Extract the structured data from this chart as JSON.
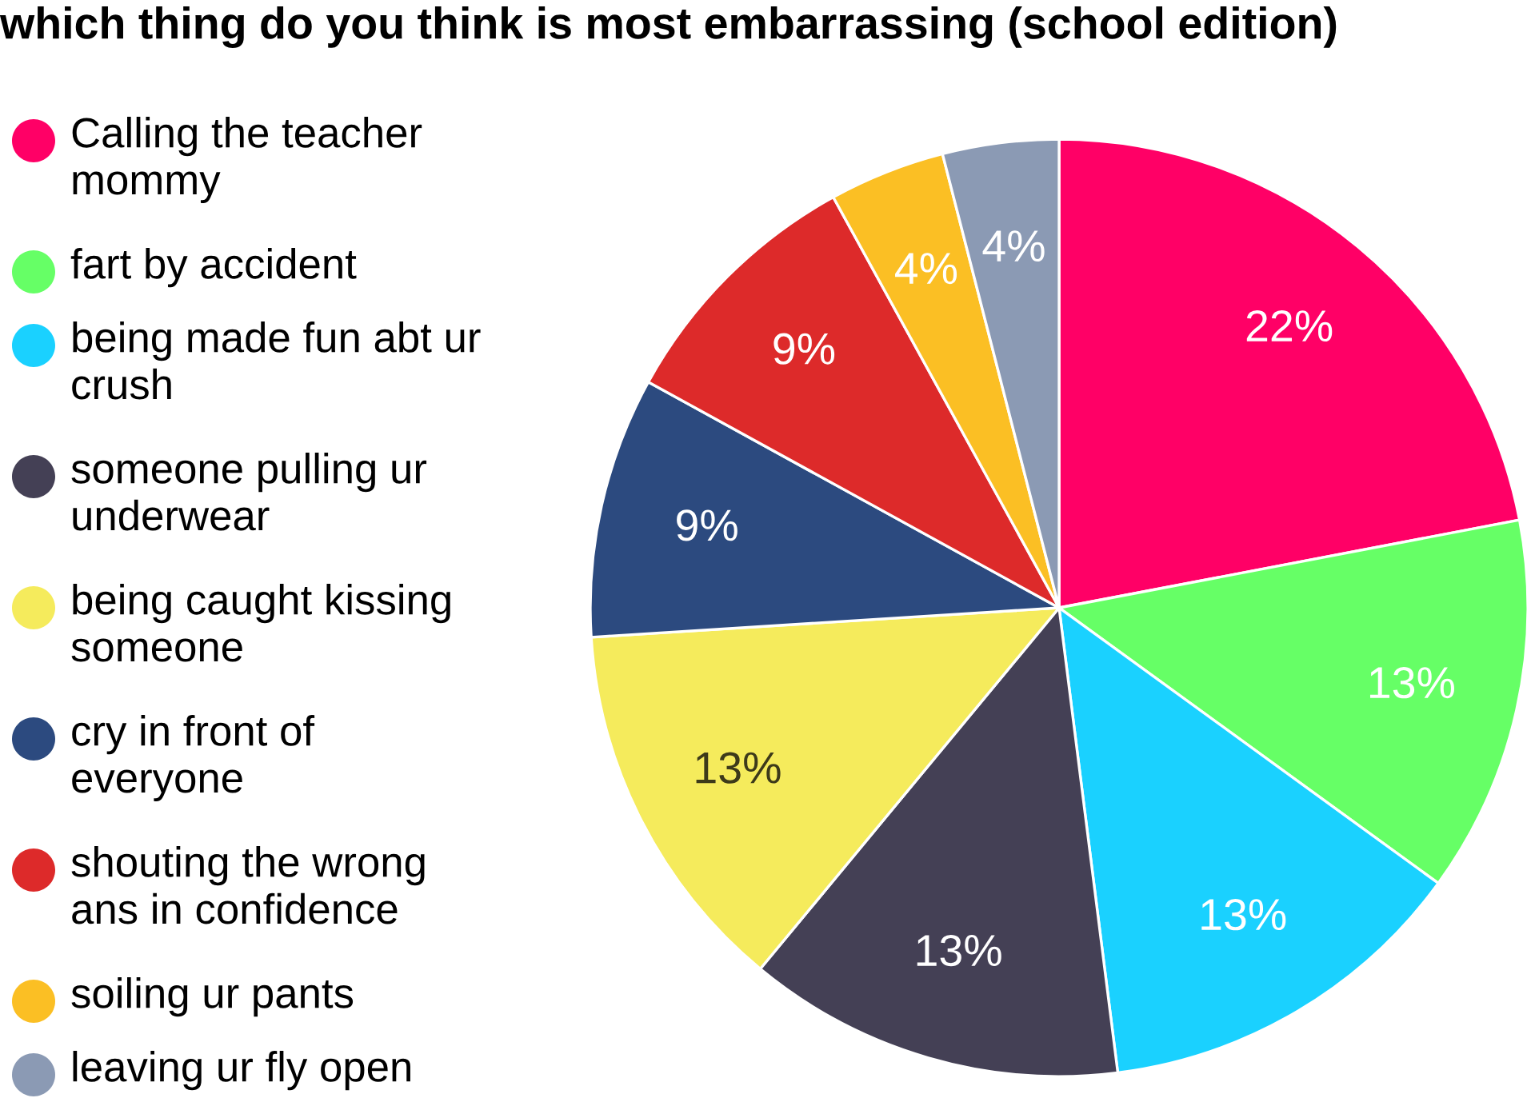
{
  "chart_data": {
    "type": "pie",
    "title": "which thing do you think is most embarrassing (school edition)",
    "categories": [
      "Calling the teacher mommy",
      "fart by accident",
      "being made fun abt ur crush",
      "someone pulling ur underwear",
      "being caught kissing someone",
      "cry in front of everyone",
      "shouting the wrong ans in confidence",
      "soiling ur pants",
      "leaving ur fly open"
    ],
    "values": [
      22,
      13,
      13,
      13,
      13,
      9,
      9,
      4,
      4
    ],
    "value_labels": [
      "22%",
      "13%",
      "13%",
      "13%",
      "13%",
      "9%",
      "9%",
      "4%",
      "4%"
    ],
    "colors": [
      "#ff0066",
      "#66ff66",
      "#1ad1ff",
      "#444055",
      "#f5eb5c",
      "#2c4a7f",
      "#dd2a2a",
      "#fbbf24",
      "#8b9ab4"
    ],
    "legend": "left"
  }
}
